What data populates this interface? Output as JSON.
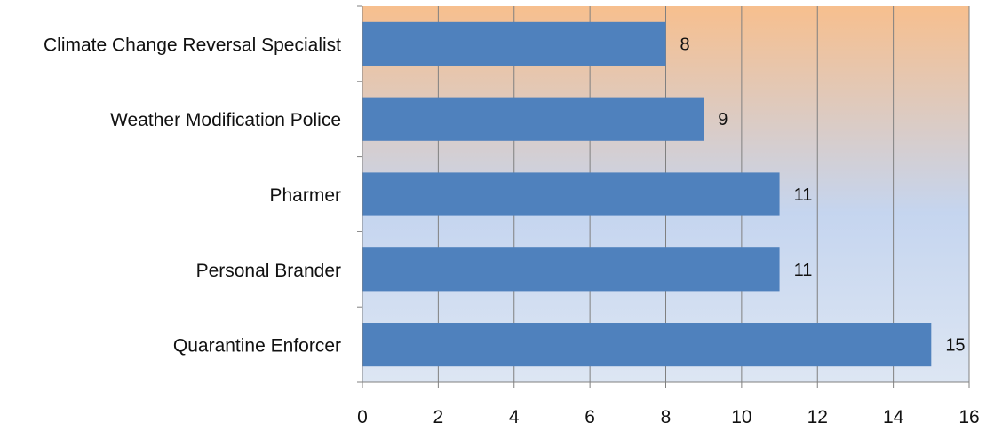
{
  "chart_data": {
    "type": "bar",
    "orientation": "horizontal",
    "categories": [
      "Climate Change Reversal Specialist",
      "Weather Modification Police",
      "Pharmer",
      "Personal Brander",
      "Quarantine Enforcer"
    ],
    "values": [
      8,
      9,
      11,
      11,
      15
    ],
    "data_labels": [
      "8",
      "9",
      "11",
      "11",
      "15"
    ],
    "xlim": [
      0,
      16
    ],
    "xticks": [
      0,
      2,
      4,
      6,
      8,
      10,
      12,
      14,
      16
    ],
    "xtick_labels": [
      "0",
      "2",
      "4",
      "6",
      "8",
      "10",
      "12",
      "14",
      "16"
    ],
    "title": "",
    "xlabel": "",
    "ylabel": "",
    "grid": "vertical",
    "legend": "none",
    "colors": {
      "bar": "#4f81bd",
      "plot_bg_top": "#f7bf8e",
      "plot_bg_middle": "#c5d5ef",
      "plot_bg_bottom": "#dde6f3",
      "grid": "#808080",
      "axis": "#808080"
    }
  }
}
